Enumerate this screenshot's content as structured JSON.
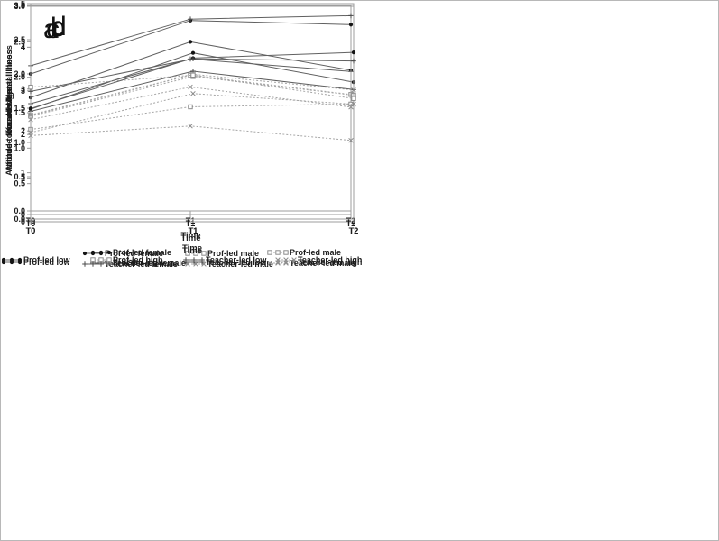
{
  "colors": {
    "background": "#ffffff",
    "axis": "#9c9c9c",
    "text": "#1c1c1c",
    "solid_line": "#606060",
    "dashed_line": "#a6a6a6",
    "dot_marker": "#141414",
    "plus_marker": "#4a4a4a",
    "gray_marker": "#8c8c8c"
  },
  "chart_data": [
    {
      "id": "a",
      "type": "line",
      "panel_label": "a",
      "title": "",
      "xlabel": "Time",
      "ylabel": "Knowledge",
      "x_categories": [
        "T0",
        "T1",
        "T2"
      ],
      "ylim": [
        0,
        5
      ],
      "ytick_labels": [
        "0",
        "1",
        "2",
        "3",
        "4",
        "5"
      ],
      "grid": false,
      "legend_position": "below",
      "legend_layout": "two-column",
      "series": [
        {
          "name": "Prof-led female",
          "marker": "dot",
          "line": "solid",
          "values": [
            2.8,
            4.13,
            3.45
          ]
        },
        {
          "name": "Prof-led male",
          "marker": "square",
          "line": "dashed",
          "values": [
            2.37,
            3.33,
            2.87
          ]
        },
        {
          "name": "Teacher-led female",
          "marker": "plus",
          "line": "solid",
          "values": [
            2.65,
            3.72,
            3.42
          ]
        },
        {
          "name": "Teacher-led male",
          "marker": "x",
          "line": "dashed",
          "values": [
            2.27,
            3.05,
            2.57
          ]
        }
      ]
    },
    {
      "id": "b",
      "type": "line",
      "panel_label": "b",
      "title": "",
      "xlabel": "Time",
      "ylabel": "Knowledge",
      "x_categories": [
        "T0",
        "T1",
        "T2"
      ],
      "ylim": [
        0,
        5
      ],
      "ytick_labels": [
        "0",
        "1",
        "2",
        "3",
        "4",
        "5"
      ],
      "grid": false,
      "legend_position": "below",
      "legend_layout": "one-row",
      "series": [
        {
          "name": "Prof-led low",
          "marker": "dot",
          "line": "solid",
          "values": [
            2.58,
            3.87,
            3.2
          ]
        },
        {
          "name": "Prof-led high",
          "marker": "square",
          "line": "dashed",
          "values": [
            2.42,
            3.33,
            2.9
          ]
        },
        {
          "name": "Teacher-led low",
          "marker": "plus",
          "line": "solid",
          "values": [
            2.53,
            3.45,
            3.03
          ]
        },
        {
          "name": "Teacher-led high",
          "marker": "x",
          "line": "dashed",
          "values": [
            2.45,
            3.38,
            3.02
          ]
        }
      ]
    },
    {
      "id": "c",
      "type": "line",
      "panel_label": "c",
      "title": "",
      "xlabel": "Time",
      "ylabel": "Attitude towards Mental Illness",
      "x_categories": [
        "T0",
        "T1",
        "T2"
      ],
      "ylim": [
        0,
        3
      ],
      "ytick_labels": [
        "0.0",
        "0.5",
        "1.0",
        "1.5",
        "2.0",
        "2.5",
        "3.0"
      ],
      "grid": false,
      "legend_position": "below",
      "legend_layout": "two-column",
      "series": [
        {
          "name": "Prof-led female",
          "marker": "dot",
          "line": "solid",
          "values": [
            2.0,
            2.78,
            2.72
          ]
        },
        {
          "name": "Prof-led male",
          "marker": "square",
          "line": "dashed",
          "values": [
            1.19,
            1.52,
            1.56
          ]
        },
        {
          "name": "Teacher-led female",
          "marker": "plus",
          "line": "solid",
          "values": [
            2.12,
            2.8,
            2.85
          ]
        },
        {
          "name": "Teacher-led male",
          "marker": "x",
          "line": "dashed",
          "values": [
            1.1,
            1.24,
            1.03
          ]
        }
      ]
    },
    {
      "id": "d",
      "type": "line",
      "panel_label": "d",
      "title": "",
      "xlabel": "Time",
      "ylabel": "Attitude towards Mental Illness",
      "x_categories": [
        "T0",
        "T1",
        "T2"
      ],
      "ylim": [
        0,
        3
      ],
      "ytick_labels": [
        "0.0",
        "0.5",
        "1.0",
        "1.5",
        "2.0",
        "2.5",
        "3.0"
      ],
      "grid": false,
      "legend_position": "below",
      "legend_layout": "one-row",
      "series": [
        {
          "name": "Prof-led low",
          "marker": "dot",
          "line": "solid",
          "values": [
            1.56,
            2.27,
            2.35
          ]
        },
        {
          "name": "Prof-led high",
          "marker": "square",
          "line": "dashed",
          "values": [
            1.86,
            2.03,
            1.7
          ]
        },
        {
          "name": "Teacher-led low",
          "marker": "plus",
          "line": "solid",
          "values": [
            1.8,
            2.26,
            2.23
          ]
        },
        {
          "name": "Teacher-led high",
          "marker": "x",
          "line": "dashed",
          "values": [
            1.22,
            1.77,
            1.62
          ]
        }
      ]
    }
  ]
}
